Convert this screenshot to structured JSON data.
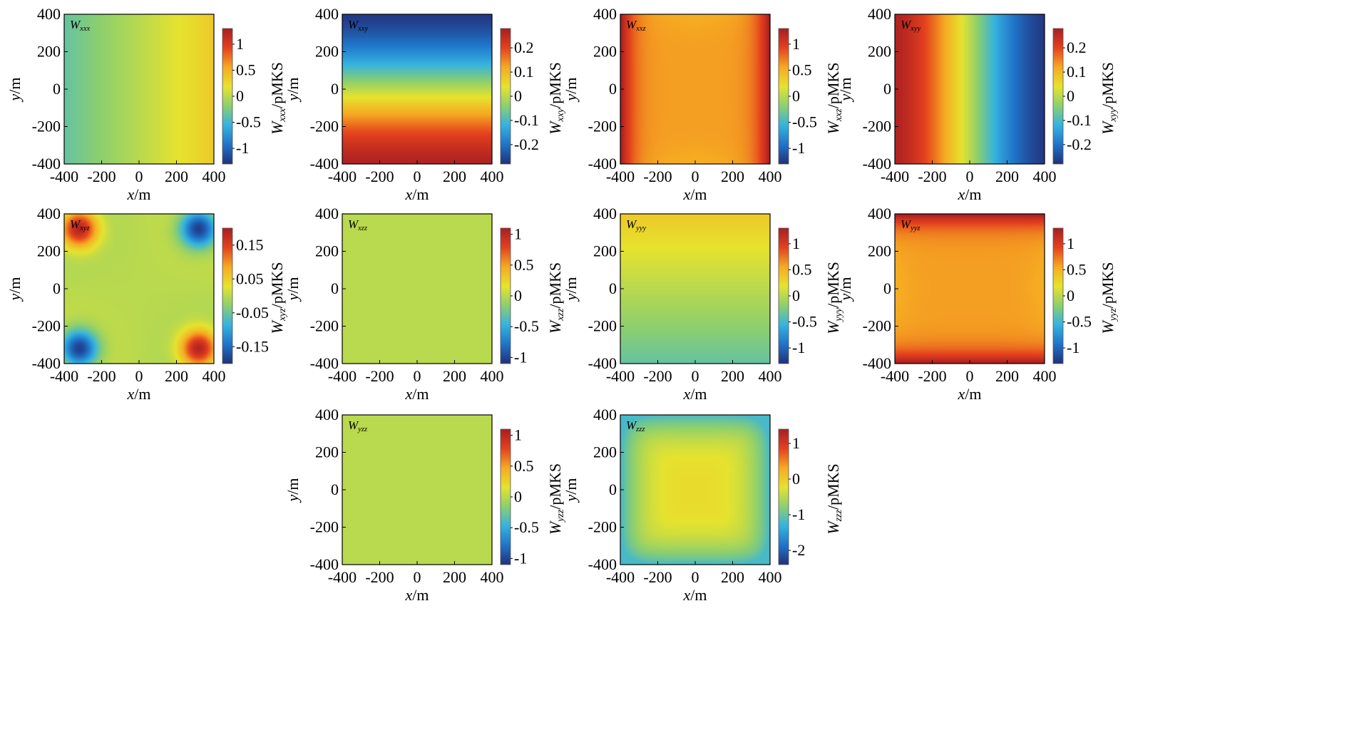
{
  "colors": {
    "colormap": [
      "#22307a",
      "#1f74c8",
      "#35b3e0",
      "#8ccf6f",
      "#e6e32e",
      "#f6aa22",
      "#e4411e",
      "#a81e22"
    ]
  },
  "chart_data": [
    {
      "type": "heatmap",
      "label": "W",
      "label_sub": "xxx",
      "cb_label": "W",
      "cb_label_sub": "xxx",
      "cb_label_unit": "/pMKS",
      "xlabel": "x",
      "xlabel_unit": "/m",
      "ylabel": "y",
      "ylabel_unit": "/m",
      "xlim": [
        -400,
        400
      ],
      "ylim": [
        -400,
        400
      ],
      "xticks": [
        "-400",
        "-200",
        "0",
        "200",
        "400"
      ],
      "yticks": [
        "-400",
        "-200",
        "0",
        "200",
        "400"
      ],
      "clim": [
        -1.3,
        1.3
      ],
      "cb_ticks": [
        {
          "v": -1,
          "t": "-1"
        },
        {
          "v": -0.5,
          "t": "-0.5"
        },
        {
          "v": 0,
          "t": "0"
        },
        {
          "v": 0.5,
          "t": "0.5"
        },
        {
          "v": 1,
          "t": "1"
        }
      ],
      "field": "linear_x",
      "params": {
        "a": 0.0,
        "b": 0.35
      }
    },
    {
      "type": "heatmap",
      "label": "W",
      "label_sub": "xxy",
      "cb_label": "W",
      "cb_label_sub": "xxy",
      "cb_label_unit": "/pMKS",
      "xlabel": "x",
      "xlabel_unit": "/m",
      "ylabel": "y",
      "ylabel_unit": "/m",
      "xlim": [
        -400,
        400
      ],
      "ylim": [
        -400,
        400
      ],
      "xticks": [
        "-400",
        "-200",
        "0",
        "200",
        "400"
      ],
      "yticks": [
        "-400",
        "-200",
        "0",
        "200",
        "400"
      ],
      "clim": [
        -0.28,
        0.28
      ],
      "cb_ticks": [
        {
          "v": -0.2,
          "t": "-0.2"
        },
        {
          "v": -0.1,
          "t": "-0.1"
        },
        {
          "v": 0,
          "t": "0"
        },
        {
          "v": 0.1,
          "t": "0.1"
        },
        {
          "v": 0.2,
          "t": "0.2"
        }
      ],
      "field": "cubic_y",
      "params": {
        "a": -0.27,
        "k": 0.85
      }
    },
    {
      "type": "heatmap",
      "label": "W",
      "label_sub": "xxz",
      "cb_label": "W",
      "cb_label_sub": "xxz",
      "cb_label_unit": "/pMKS",
      "xlabel": "x",
      "xlabel_unit": "/m",
      "ylabel": "y",
      "ylabel_unit": "/m",
      "xlim": [
        -400,
        400
      ],
      "ylim": [
        -400,
        400
      ],
      "xticks": [
        "-400",
        "-200",
        "0",
        "200",
        "400"
      ],
      "yticks": [
        "-400",
        "-200",
        "0",
        "200",
        "400"
      ],
      "clim": [
        -1.3,
        1.3
      ],
      "cb_ticks": [
        {
          "v": -1,
          "t": "-1"
        },
        {
          "v": -0.5,
          "t": "-0.5"
        },
        {
          "v": 0,
          "t": "0"
        },
        {
          "v": 0.5,
          "t": "0.5"
        },
        {
          "v": 1,
          "t": "1"
        }
      ],
      "field": "edges_x",
      "params": {
        "base": 0.6,
        "amp": 0.75,
        "p": 6
      }
    },
    {
      "type": "heatmap",
      "label": "W",
      "label_sub": "xyy",
      "cb_label": "W",
      "cb_label_sub": "xyy",
      "cb_label_unit": "/pMKS",
      "xlabel": "x",
      "xlabel_unit": "/m",
      "ylabel": "y",
      "ylabel_unit": "/m",
      "xlim": [
        -400,
        400
      ],
      "ylim": [
        -400,
        400
      ],
      "xticks": [
        "-400",
        "-200",
        "0",
        "200",
        "400"
      ],
      "yticks": [
        "-400",
        "-200",
        "0",
        "200",
        "400"
      ],
      "clim": [
        -0.28,
        0.28
      ],
      "cb_ticks": [
        {
          "v": -0.2,
          "t": "-0.2"
        },
        {
          "v": -0.1,
          "t": "-0.1"
        },
        {
          "v": 0,
          "t": "0"
        },
        {
          "v": 0.1,
          "t": "0.1"
        },
        {
          "v": 0.2,
          "t": "0.2"
        }
      ],
      "field": "cubic_x",
      "params": {
        "a": -0.27,
        "k": 0.85
      }
    },
    {
      "type": "heatmap",
      "label": "W",
      "label_sub": "xyz",
      "cb_label": "W",
      "cb_label_sub": "xyz",
      "cb_label_unit": "/pMKS",
      "xlabel": "x",
      "xlabel_unit": "/m",
      "ylabel": "y",
      "ylabel_unit": "/m",
      "xlim": [
        -400,
        400
      ],
      "ylim": [
        -400,
        400
      ],
      "xticks": [
        "-400",
        "-200",
        "0",
        "200",
        "400"
      ],
      "yticks": [
        "-400",
        "-200",
        "0",
        "200",
        "400"
      ],
      "clim": [
        -0.2,
        0.2
      ],
      "cb_ticks": [
        {
          "v": -0.15,
          "t": "-0.15"
        },
        {
          "v": -0.05,
          "t": "-0.05"
        },
        {
          "v": 0.05,
          "t": "0.05"
        },
        {
          "v": 0.15,
          "t": "0.15"
        }
      ],
      "field": "corners",
      "params": {
        "amp": 0.2
      }
    },
    {
      "type": "heatmap",
      "label": "W",
      "label_sub": "xzz",
      "cb_label": "W",
      "cb_label_sub": "xzz",
      "cb_label_unit": "/pMKS",
      "xlabel": "x",
      "xlabel_unit": "/m",
      "ylabel": "y",
      "ylabel_unit": "/m",
      "xlim": [
        -400,
        400
      ],
      "ylim": [
        -400,
        400
      ],
      "xticks": [
        "-400",
        "-200",
        "0",
        "200",
        "400"
      ],
      "yticks": [
        "-400",
        "-200",
        "0",
        "200",
        "400"
      ],
      "clim": [
        -1.1,
        1.1
      ],
      "cb_ticks": [
        {
          "v": -1,
          "t": "-1"
        },
        {
          "v": -0.5,
          "t": "-0.5"
        },
        {
          "v": 0,
          "t": "0"
        },
        {
          "v": 0.5,
          "t": "0.5"
        },
        {
          "v": 1,
          "t": "1"
        }
      ],
      "field": "constant",
      "params": {
        "c": 0
      }
    },
    {
      "type": "heatmap",
      "label": "W",
      "label_sub": "yyy",
      "cb_label": "W",
      "cb_label_sub": "yyy",
      "cb_label_unit": "/pMKS",
      "xlabel": "x",
      "xlabel_unit": "/m",
      "ylabel": "y",
      "ylabel_unit": "/m",
      "xlim": [
        -400,
        400
      ],
      "ylim": [
        -400,
        400
      ],
      "xticks": [
        "-400",
        "-200",
        "0",
        "200",
        "400"
      ],
      "yticks": [
        "-400",
        "-200",
        "0",
        "200",
        "400"
      ],
      "clim": [
        -1.3,
        1.3
      ],
      "cb_ticks": [
        {
          "v": -1,
          "t": "-1"
        },
        {
          "v": -0.5,
          "t": "-0.5"
        },
        {
          "v": 0,
          "t": "0"
        },
        {
          "v": 0.5,
          "t": "0.5"
        },
        {
          "v": 1,
          "t": "1"
        }
      ],
      "field": "linear_y",
      "params": {
        "a": 0.0,
        "b": 0.35
      }
    },
    {
      "type": "heatmap",
      "label": "W",
      "label_sub": "yyz",
      "cb_label": "W",
      "cb_label_sub": "yyz",
      "cb_label_unit": "/pMKS",
      "xlabel": "x",
      "xlabel_unit": "/m",
      "ylabel": "y",
      "ylabel_unit": "/m",
      "xlim": [
        -400,
        400
      ],
      "ylim": [
        -400,
        400
      ],
      "xticks": [
        "-400",
        "-200",
        "0",
        "200",
        "400"
      ],
      "yticks": [
        "-400",
        "-200",
        "0",
        "200",
        "400"
      ],
      "clim": [
        -1.3,
        1.3
      ],
      "cb_ticks": [
        {
          "v": -1,
          "t": "-1"
        },
        {
          "v": -0.5,
          "t": "-0.5"
        },
        {
          "v": 0,
          "t": "0"
        },
        {
          "v": 0.5,
          "t": "0.5"
        },
        {
          "v": 1,
          "t": "1"
        }
      ],
      "field": "edges_y",
      "params": {
        "base": 0.6,
        "amp": 0.75,
        "p": 6
      }
    },
    {
      "type": "heatmap",
      "label": "W",
      "label_sub": "yzz",
      "cb_label": "W",
      "cb_label_sub": "yzz",
      "cb_label_unit": "/pMKS",
      "xlabel": "x",
      "xlabel_unit": "/m",
      "ylabel": "y",
      "ylabel_unit": "/m",
      "xlim": [
        -400,
        400
      ],
      "ylim": [
        -400,
        400
      ],
      "xticks": [
        "-400",
        "-200",
        "0",
        "200",
        "400"
      ],
      "yticks": [
        "-400",
        "-200",
        "0",
        "200",
        "400"
      ],
      "clim": [
        -1.1,
        1.1
      ],
      "cb_ticks": [
        {
          "v": -1,
          "t": "-1"
        },
        {
          "v": -0.5,
          "t": "-0.5"
        },
        {
          "v": 0,
          "t": "0"
        },
        {
          "v": 0.5,
          "t": "0.5"
        },
        {
          "v": 1,
          "t": "1"
        }
      ],
      "field": "constant",
      "params": {
        "c": 0
      }
    },
    {
      "type": "heatmap",
      "label": "W",
      "label_sub": "zzz",
      "cb_label": "W",
      "cb_label_sub": "zzz",
      "cb_label_unit": "/pMKS",
      "xlabel": "x",
      "xlabel_unit": "/m",
      "ylabel": "y",
      "ylabel_unit": "/m",
      "xlim": [
        -400,
        400
      ],
      "ylim": [
        -400,
        400
      ],
      "xticks": [
        "-400",
        "-200",
        "0",
        "200",
        "400"
      ],
      "yticks": [
        "-400",
        "-200",
        "0",
        "200",
        "400"
      ],
      "clim": [
        -2.4,
        1.4
      ],
      "cb_ticks": [
        {
          "v": -2,
          "t": "-2"
        },
        {
          "v": -1,
          "t": "-1"
        },
        {
          "v": 0,
          "t": "0"
        },
        {
          "v": 1,
          "t": "1"
        }
      ],
      "field": "box",
      "params": {
        "center": -0.15,
        "edge": -1.2,
        "p": 6
      }
    }
  ]
}
